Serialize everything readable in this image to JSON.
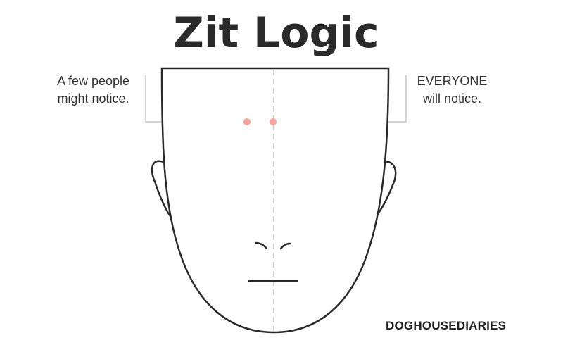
{
  "title": "Zit Logic",
  "annotations": {
    "left": {
      "line1": "A few people",
      "line2": "might notice."
    },
    "right": {
      "line1": "EVERYONE",
      "line2": "will notice."
    }
  },
  "credit": "DOGHOUSEDIARIES",
  "colors": {
    "line": "#2a2a2a",
    "guide": "#aaaaaa",
    "centerline": "#cccccc",
    "zit": "#f4a59c"
  }
}
